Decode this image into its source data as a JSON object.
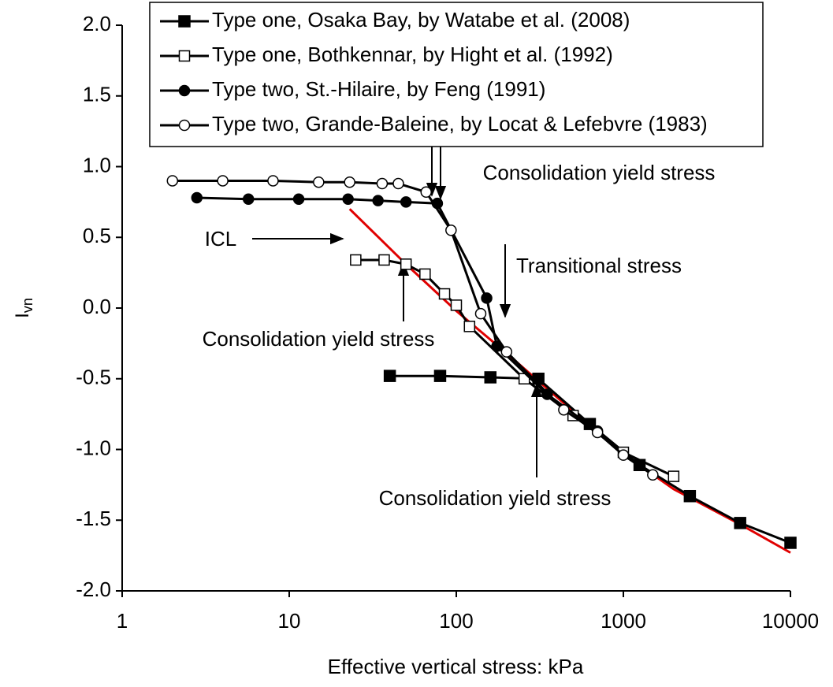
{
  "chart_data": {
    "type": "line",
    "xlabel": "Effective vertical stress: kPa",
    "ylabel": "I",
    "ylabel_subscript": "vn",
    "xscale": "log",
    "xlim": [
      1,
      10000
    ],
    "xticks": [
      1,
      10,
      100,
      1000,
      10000
    ],
    "ylim": [
      -2,
      2
    ],
    "yticks": [
      {
        "value": 2,
        "label": "2.0"
      },
      {
        "value": 1.5,
        "label": "1.5"
      },
      {
        "value": 1,
        "label": "1.0"
      },
      {
        "value": 0.5,
        "label": "0.5"
      },
      {
        "value": 0,
        "label": "0.0"
      },
      {
        "value": -0.5,
        "label": "-0.5"
      },
      {
        "value": -1,
        "label": "-1.0"
      },
      {
        "value": -1.5,
        "label": "-1.5"
      },
      {
        "value": -2,
        "label": "-2.0"
      }
    ],
    "grid": false,
    "legend": "top",
    "series": [
      {
        "name": "Type one, Osaka Bay, by Watabe et al. (2008)",
        "color": "#000000",
        "marker": "square",
        "filled": true,
        "x": [
          40,
          80,
          160,
          310,
          630,
          1250,
          2500,
          5000,
          10000
        ],
        "values": [
          -0.48,
          -0.48,
          -0.49,
          -0.5,
          -0.82,
          -1.11,
          -1.33,
          -1.52,
          -1.66
        ]
      },
      {
        "name": "Type one, Bothkennar, by Hight et al. (1992)",
        "color": "#000000",
        "marker": "square",
        "filled": false,
        "x": [
          25,
          37,
          50,
          65,
          85,
          100,
          120,
          255,
          500,
          1000,
          2000
        ],
        "values": [
          0.34,
          0.34,
          0.31,
          0.24,
          0.1,
          0.02,
          -0.13,
          -0.5,
          -0.76,
          -1.02,
          -1.19
        ]
      },
      {
        "name": "Type two, St.-Hilaire, by Feng (1991)",
        "color": "#000000",
        "marker": "circle",
        "filled": true,
        "x": [
          2.8,
          5.7,
          11.4,
          22.5,
          34,
          50,
          77,
          152,
          175,
          350,
          700
        ],
        "values": [
          0.78,
          0.77,
          0.77,
          0.77,
          0.76,
          0.75,
          0.74,
          0.07,
          -0.27,
          -0.61,
          -0.87
        ]
      },
      {
        "name": "Type two, Grande-Baleine, by Locat & Lefebvre (1983)",
        "color": "#000000",
        "marker": "circle",
        "filled": false,
        "x": [
          2,
          4,
          8,
          15,
          23,
          36,
          45,
          66,
          93,
          140,
          200,
          440,
          700,
          1000,
          1500
        ],
        "values": [
          0.9,
          0.9,
          0.9,
          0.89,
          0.89,
          0.88,
          0.88,
          0.82,
          0.55,
          -0.04,
          -0.31,
          -0.72,
          -0.88,
          -1.04,
          -1.18
        ]
      }
    ],
    "icl_line": {
      "color": "#e00000",
      "x": [
        23,
        50,
        100,
        200,
        500,
        1000,
        2000,
        5000,
        10000
      ],
      "values": [
        0.7,
        0.31,
        -0.02,
        -0.32,
        -0.73,
        -1.03,
        -1.28,
        -1.53,
        -1.73
      ]
    },
    "annotations": [
      "Consolidation yield stress",
      "ICL",
      "Transitional stress",
      "Consolidation yield stress",
      "Consolidation yield stress"
    ]
  }
}
